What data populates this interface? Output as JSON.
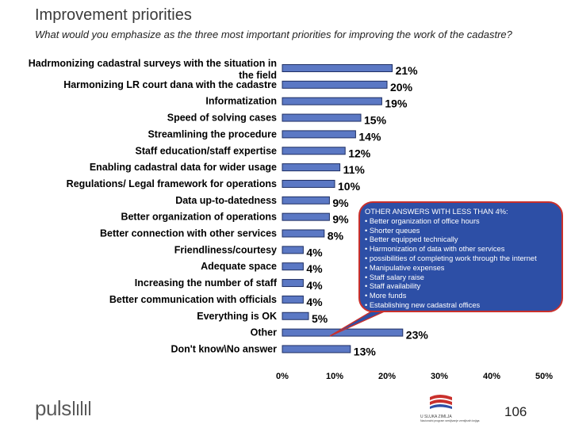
{
  "title": "Improvement priorities",
  "subtitle": "What would you emphasize as the three most important priorities for improving the work of the cadastre?",
  "chart_data": {
    "type": "bar",
    "orientation": "horizontal",
    "categories": [
      "Hadrmonizing cadastral surveys with the situation in the field",
      "Harmonizing LR court dana with the cadastre",
      "Informatization",
      "Speed of solving cases",
      "Streamlining the procedure",
      "Staff education/staff expertise",
      "Enabling cadastral data for wider usage",
      "Regulations/ Legal framework for operations",
      "Data up-to-datedness",
      "Better organization of operations",
      "Better connection with other services",
      "Friendliness/courtesy",
      "Adequate space",
      "Increasing the number of staff",
      "Better communication with officials",
      "Everything is OK",
      "Other",
      "Don't know\\No answer"
    ],
    "category_lines": [
      [
        "Hadrmonizing cadastral surveys with the situation in",
        "the field"
      ],
      [
        "Harmonizing LR court dana with the cadastre"
      ],
      [
        "Informatization"
      ],
      [
        "Speed of solving cases"
      ],
      [
        "Streamlining the procedure"
      ],
      [
        "Staff education/staff expertise"
      ],
      [
        "Enabling cadastral data for wider usage"
      ],
      [
        "Regulations/ Legal framework for operations"
      ],
      [
        "Data up-to-datedness"
      ],
      [
        "Better organization of operations"
      ],
      [
        "Better connection with other services"
      ],
      [
        "Friendliness/courtesy"
      ],
      [
        "Adequate space"
      ],
      [
        "Increasing the number of staff"
      ],
      [
        "Better communication with officials"
      ],
      [
        "Everything is OK"
      ],
      [
        "Other"
      ],
      [
        "Don't know\\No answer"
      ]
    ],
    "values": [
      21,
      20,
      19,
      15,
      14,
      12,
      11,
      10,
      9,
      9,
      8,
      4,
      4,
      4,
      4,
      5,
      23,
      13
    ],
    "value_labels": [
      "21%",
      "20%",
      "19%",
      "15%",
      "14%",
      "12%",
      "11%",
      "10%",
      "9%",
      "9%",
      "8%",
      "4%",
      "4%",
      "4%",
      "4%",
      "5%",
      "23%",
      "13%"
    ],
    "xlim": [
      0,
      50
    ],
    "x_ticks": [
      "0%",
      "10%",
      "20%",
      "30%",
      "40%",
      "50%"
    ],
    "bar_color": "#5b78c4",
    "bar_edge_color": "#1f2f63",
    "grid": false,
    "legend": "none"
  },
  "callout": {
    "title": "OTHER ANSWERS WITH LESS THAN 4%:",
    "items": [
      "• Better organization of office hours",
      "• Shorter queues",
      "• Better equipped technically",
      "• Harmonization of data with other services",
      "• possibilities of completing work through the internet",
      "• Manipulative expenses",
      "• Staff salary raise",
      "• Staff availability",
      "• More funds",
      "• Establishing new cadastral offices"
    ],
    "background": "#2d4fa6",
    "border_color": "#c9302c"
  },
  "footer": {
    "logo_text": "puls",
    "partner_logo_text": "U SLUKA ZIMLJA",
    "partner_logo_subtext": "Nacionalni program sredjivanje zemljisnih knjiga",
    "page_number": "106"
  }
}
